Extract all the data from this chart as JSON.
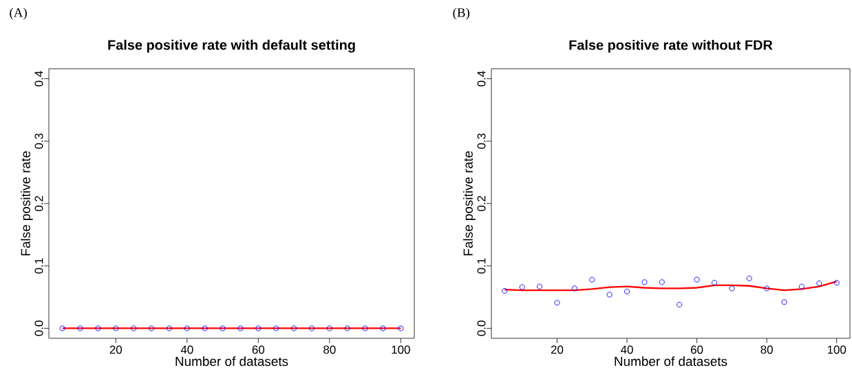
{
  "chart_data": [
    {
      "type": "scatter",
      "title": "False positive rate with default setting",
      "xlabel": "Number of datasets",
      "ylabel": "False positive rate",
      "annotations": [
        "(A)"
      ],
      "x": [
        5,
        10,
        15,
        20,
        25,
        30,
        35,
        40,
        45,
        50,
        55,
        60,
        65,
        70,
        75,
        80,
        85,
        90,
        95,
        100
      ],
      "series": [
        {
          "type": "scatter",
          "color": "#0000ff",
          "marker": "circle",
          "values": [
            0,
            0,
            0,
            0,
            0,
            0,
            0,
            0,
            0,
            0,
            0,
            0,
            0,
            0,
            0,
            0,
            0,
            0,
            0,
            0
          ]
        },
        {
          "type": "line",
          "color": "#ff0000",
          "values": [
            0,
            0,
            0,
            0,
            0,
            0,
            0,
            0,
            0,
            0,
            0,
            0,
            0,
            0,
            0,
            0,
            0,
            0,
            0,
            0
          ]
        }
      ],
      "xlim": [
        1.2,
        103.8
      ],
      "ylim": [
        -0.016,
        0.416
      ],
      "xticks": [
        20,
        40,
        60,
        80,
        100
      ],
      "yticks": [
        {
          "value": 0,
          "label": "0.0"
        },
        0.1,
        0.2,
        0.3,
        0.4
      ],
      "grid": false
    },
    {
      "type": "scatter",
      "title": "False positive rate without FDR",
      "xlabel": "Number of datasets",
      "ylabel": "False positive rate",
      "annotations": [
        "(B)"
      ],
      "x": [
        5,
        10,
        15,
        20,
        25,
        30,
        35,
        40,
        45,
        50,
        55,
        60,
        65,
        70,
        75,
        80,
        85,
        90,
        95,
        100
      ],
      "series": [
        {
          "type": "scatter",
          "color": "#0000ff",
          "marker": "circle",
          "values": [
            0.06,
            0.066,
            0.067,
            0.041,
            0.064,
            0.078,
            0.054,
            0.059,
            0.074,
            0.074,
            0.038,
            0.078,
            0.073,
            0.064,
            0.08,
            0.064,
            0.042,
            0.067,
            0.072,
            0.073
          ]
        },
        {
          "type": "line",
          "color": "#ff0000",
          "values": [
            0.062,
            0.061,
            0.061,
            0.061,
            0.061,
            0.063,
            0.066,
            0.067,
            0.065,
            0.064,
            0.064,
            0.065,
            0.069,
            0.069,
            0.068,
            0.064,
            0.061,
            0.063,
            0.067,
            0.075
          ]
        }
      ],
      "xlim": [
        1.2,
        103.8
      ],
      "ylim": [
        -0.016,
        0.416
      ],
      "xticks": [
        20,
        40,
        60,
        80,
        100
      ],
      "yticks": [
        {
          "value": 0,
          "label": "0.0"
        },
        0.1,
        0.2,
        0.3,
        0.4
      ],
      "grid": false
    }
  ]
}
